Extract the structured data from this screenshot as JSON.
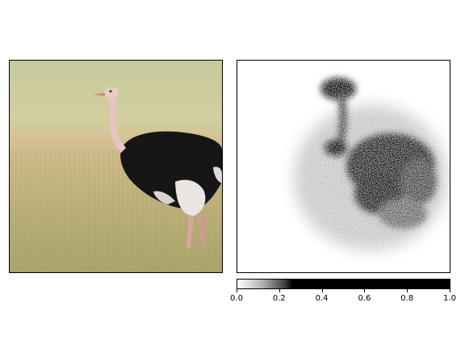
{
  "chart_data": [
    {
      "type": "image",
      "title": "",
      "subject": "ostrich standing in grassland",
      "colors": {
        "sky": "#cfcf9a",
        "grass": "#b9b27a",
        "grass_dry": "#d1b98a",
        "body": "#161616",
        "neck": "#e7c6c2",
        "beak": "#e8877a"
      }
    },
    {
      "type": "heatmap",
      "title": "",
      "colormap": "gray_r",
      "xlabel": "",
      "ylabel": "",
      "colorbar": {
        "range": [
          0.0,
          1.0
        ],
        "ticks": [
          "0.0",
          "0.2",
          "0.4",
          "0.6",
          "0.8",
          "1.0"
        ],
        "tick_values": [
          0.0,
          0.2,
          0.4,
          0.6,
          0.8,
          1.0
        ]
      }
    }
  ]
}
